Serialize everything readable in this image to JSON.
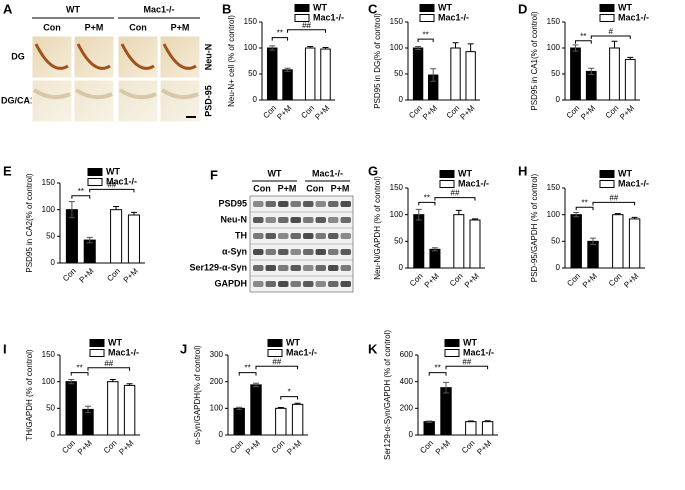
{
  "panel_a": {
    "letter": "A",
    "groups": [
      "WT",
      "Mac1-/-"
    ],
    "columns": [
      "Con",
      "P+M",
      "Con",
      "P+M"
    ],
    "rows": [
      "DG",
      "DG/CA1"
    ],
    "stains": [
      "Neu-N",
      "PSD-95"
    ]
  },
  "panel_f": {
    "letter": "F",
    "groups": [
      "WT",
      "Mac1-/-"
    ],
    "columns": [
      "Con",
      "P+M",
      "Con",
      "P+M"
    ],
    "rows": [
      "PSD95",
      "Neu-N",
      "TH",
      "α-Syn",
      "Ser129-α-Syn",
      "GAPDH"
    ]
  },
  "chart_data": [
    {
      "type": "bar",
      "panel": "B",
      "ylabel": "Neu-N+ cell (% of control)",
      "categories": [
        "Con",
        "P+M",
        "Con",
        "P+M"
      ],
      "ylim": [
        0,
        150
      ],
      "yticks": [
        0,
        50,
        100,
        150
      ],
      "series": [
        {
          "name": "WT",
          "color": "#000000",
          "values": [
            100,
            58,
            null,
            null
          ],
          "errors": [
            4,
            3,
            null,
            null
          ]
        },
        {
          "name": "Mac1-/-",
          "color": "#ffffff",
          "values": [
            null,
            null,
            100,
            98
          ],
          "errors": [
            null,
            null,
            3,
            3
          ]
        }
      ],
      "annotations": [
        "**",
        "##"
      ]
    },
    {
      "type": "bar",
      "panel": "C",
      "ylabel": "PSD95 in DG(% of control)",
      "categories": [
        "Con",
        "P+M",
        "Con",
        "P+M"
      ],
      "ylim": [
        0,
        150
      ],
      "yticks": [
        0,
        50,
        100,
        150
      ],
      "series": [
        {
          "name": "WT",
          "color": "#000000",
          "values": [
            100,
            48,
            null,
            null
          ],
          "errors": [
            3,
            12,
            null,
            null
          ]
        },
        {
          "name": "Mac1-/-",
          "color": "#ffffff",
          "values": [
            null,
            null,
            100,
            93
          ],
          "errors": [
            null,
            null,
            10,
            15
          ]
        }
      ],
      "annotations": [
        "**"
      ]
    },
    {
      "type": "bar",
      "panel": "D",
      "ylabel": "PSD95 in CA1(% of control)",
      "categories": [
        "Con",
        "P+M",
        "Con",
        "P+M"
      ],
      "ylim": [
        0,
        150
      ],
      "yticks": [
        0,
        50,
        100,
        150
      ],
      "series": [
        {
          "name": "WT",
          "color": "#000000",
          "values": [
            100,
            55,
            null,
            null
          ],
          "errors": [
            6,
            6,
            null,
            null
          ]
        },
        {
          "name": "Mac1-/-",
          "color": "#ffffff",
          "values": [
            null,
            null,
            100,
            78
          ],
          "errors": [
            null,
            null,
            13,
            4
          ]
        }
      ],
      "annotations": [
        "**",
        "#"
      ]
    },
    {
      "type": "bar",
      "panel": "E",
      "ylabel": "PSD95 in CA2(% of control)",
      "categories": [
        "Con",
        "P+M",
        "Con",
        "P+M"
      ],
      "ylim": [
        0,
        150
      ],
      "yticks": [
        0,
        50,
        100,
        150
      ],
      "series": [
        {
          "name": "WT",
          "color": "#000000",
          "values": [
            100,
            43,
            null,
            null
          ],
          "errors": [
            15,
            5,
            null,
            null
          ]
        },
        {
          "name": "Mac1-/-",
          "color": "#ffffff",
          "values": [
            null,
            null,
            100,
            90
          ],
          "errors": [
            null,
            null,
            6,
            5
          ]
        }
      ],
      "annotations": [
        "**",
        "##"
      ]
    },
    {
      "type": "bar",
      "panel": "G",
      "ylabel": "Neu-N/GAPDH (% of control)",
      "categories": [
        "Con",
        "P+M",
        "Con",
        "P+M"
      ],
      "ylim": [
        0,
        150
      ],
      "yticks": [
        0,
        50,
        100,
        150
      ],
      "series": [
        {
          "name": "WT",
          "color": "#000000",
          "values": [
            100,
            35,
            null,
            null
          ],
          "errors": [
            10,
            3,
            null,
            null
          ]
        },
        {
          "name": "Mac1-/-",
          "color": "#ffffff",
          "values": [
            null,
            null,
            100,
            90
          ],
          "errors": [
            null,
            null,
            8,
            2
          ]
        }
      ],
      "annotations": [
        "**",
        "##"
      ]
    },
    {
      "type": "bar",
      "panel": "H",
      "ylabel": "PSD-95/GAPDH (% of control)",
      "categories": [
        "Con",
        "P+M",
        "Con",
        "P+M"
      ],
      "ylim": [
        0,
        150
      ],
      "yticks": [
        0,
        50,
        100,
        150
      ],
      "series": [
        {
          "name": "WT",
          "color": "#000000",
          "values": [
            100,
            50,
            null,
            null
          ],
          "errors": [
            4,
            6,
            null,
            null
          ]
        },
        {
          "name": "Mac1-/-",
          "color": "#ffffff",
          "values": [
            null,
            null,
            100,
            92
          ],
          "errors": [
            null,
            null,
            2,
            3
          ]
        }
      ],
      "annotations": [
        "**",
        "##"
      ]
    },
    {
      "type": "bar",
      "panel": "I",
      "ylabel": "TH/GAPDH (% of control)",
      "categories": [
        "Con",
        "P+M",
        "Con",
        "P+M"
      ],
      "ylim": [
        0,
        150
      ],
      "yticks": [
        0,
        50,
        100,
        150
      ],
      "series": [
        {
          "name": "WT",
          "color": "#000000",
          "values": [
            100,
            48,
            null,
            null
          ],
          "errors": [
            4,
            6,
            null,
            null
          ]
        },
        {
          "name": "Mac1-/-",
          "color": "#ffffff",
          "values": [
            null,
            null,
            100,
            93
          ],
          "errors": [
            null,
            null,
            4,
            3
          ]
        }
      ],
      "annotations": [
        "**",
        "##"
      ]
    },
    {
      "type": "bar",
      "panel": "J",
      "ylabel": "α-Syn/GAPDH(% of control)",
      "categories": [
        "Con",
        "P+M",
        "Con",
        "P+M"
      ],
      "ylim": [
        0,
        300
      ],
      "yticks": [
        0,
        100,
        200,
        300
      ],
      "series": [
        {
          "name": "WT",
          "color": "#000000",
          "values": [
            100,
            188,
            null,
            null
          ],
          "errors": [
            4,
            6,
            null,
            null
          ]
        },
        {
          "name": "Mac1-/-",
          "color": "#ffffff",
          "values": [
            null,
            null,
            100,
            115
          ],
          "errors": [
            null,
            null,
            3,
            4
          ]
        }
      ],
      "annotations": [
        "**",
        "##",
        "*"
      ]
    },
    {
      "type": "bar",
      "panel": "K",
      "ylabel": "Ser129-α-Syn/GAPDH (% of control)",
      "categories": [
        "Con",
        "P+M",
        "Con",
        "P+M"
      ],
      "ylim": [
        0,
        600
      ],
      "yticks": [
        0,
        200,
        400,
        600
      ],
      "series": [
        {
          "name": "WT",
          "color": "#000000",
          "values": [
            100,
            355,
            null,
            null
          ],
          "errors": [
            5,
            40,
            null,
            null
          ]
        },
        {
          "name": "Mac1-/-",
          "color": "#ffffff",
          "values": [
            null,
            null,
            100,
            100
          ],
          "errors": [
            null,
            null,
            5,
            7
          ]
        }
      ],
      "annotations": [
        "**",
        "##"
      ]
    }
  ]
}
